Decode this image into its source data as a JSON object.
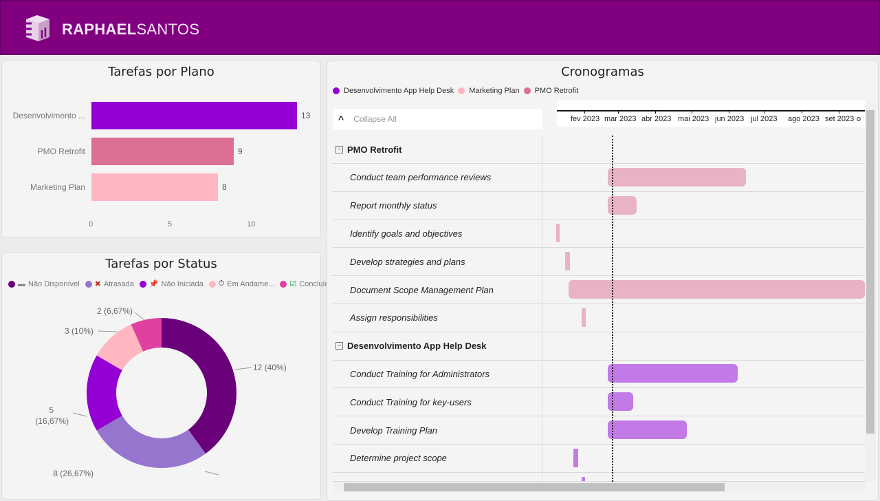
{
  "header": {
    "brand_bold": "RAPHAEL",
    "brand_light": "SANTOS",
    "brand_color": "#800080"
  },
  "plan_chart": {
    "title": "Tarefas por Plano",
    "chart_data": {
      "type": "bar",
      "orientation": "horizontal",
      "categories": [
        "Desenvolvimento ...",
        "PMO Retrofit",
        "Marketing Plan"
      ],
      "values": [
        13,
        9,
        8
      ],
      "colors": [
        "#9400d3",
        "#db7093",
        "#ffb6c1"
      ],
      "xticks": [
        "0",
        "5",
        "10"
      ],
      "xlim": [
        0,
        14
      ]
    }
  },
  "status_chart": {
    "title": "Tarefas por Status",
    "legend": [
      {
        "label": "Não Disponível",
        "color": "#6a007a",
        "icon": "dash-icon"
      },
      {
        "label": "Atrasada",
        "color": "#9575cd",
        "icon": "x-icon"
      },
      {
        "label": "Não Iniciada",
        "color": "#9400d3",
        "icon": "pin-icon"
      },
      {
        "label": "Em Andame...",
        "color": "#ffb6c1",
        "icon": "stopwatch-icon"
      },
      {
        "label": "Concluída",
        "color": "#e040a0",
        "icon": "check-icon"
      }
    ],
    "chart_data": {
      "type": "pie",
      "donut": true,
      "slices": [
        {
          "status": "Não Disponível",
          "value": 12,
          "label": "12 (40%)",
          "color": "#6a007a"
        },
        {
          "status": "Atrasada",
          "value": 8,
          "label": "8 (26,67%)",
          "color": "#9575cd"
        },
        {
          "status": "Não Iniciada",
          "value": 5,
          "label": "5 (16,67%)",
          "color": "#9400d3"
        },
        {
          "status": "Em Andamento",
          "value": 3,
          "label": "3 (10%)",
          "color": "#ffb6c1"
        },
        {
          "status": "Concluída",
          "value": 2,
          "label": "2 (6,67%)",
          "color": "#e040a0"
        }
      ]
    },
    "label_5a": "5",
    "label_5b": "(16,67%)"
  },
  "gantt": {
    "title": "Cronogramas",
    "legend": [
      {
        "label": "Desenvolvimento App Help Desk",
        "color": "#9400d3"
      },
      {
        "label": "Marketing Plan",
        "color": "#ffb6c1"
      },
      {
        "label": "PMO Retrofit",
        "color": "#db7093"
      }
    ],
    "collapse_label": "Collapse All",
    "months": [
      "fev 2023",
      "mar 2023",
      "abr 2023",
      "mai 2023",
      "jun 2023",
      "jul 2023",
      "ago 2023",
      "set 2023",
      "o"
    ],
    "today": "2023-02-24",
    "groups": [
      {
        "name": "PMO Retrofit",
        "toggle": "−",
        "color": "#e8b4c4",
        "tasks": [
          {
            "name": "Conduct team performance reviews",
            "start": "2023-02-20",
            "end": "2023-06-14"
          },
          {
            "name": "Report monthly status",
            "start": "2023-02-20",
            "end": "2023-03-16"
          },
          {
            "name": "Identify goals and objectives",
            "start": "2023-01-09",
            "end": "2023-01-12"
          },
          {
            "name": "Develop strategies and plans",
            "start": "2023-01-16",
            "end": "2023-01-20"
          },
          {
            "name": "Document Scope Management Plan",
            "start": "2023-01-19",
            "end": "2023-12-31"
          },
          {
            "name": "Assign responsibilities",
            "start": "2023-01-30",
            "end": "2023-02-02"
          }
        ]
      },
      {
        "name": "Desenvolvimento App Help Desk",
        "toggle": "−",
        "color": "#c27ae6",
        "tasks": [
          {
            "name": "Conduct Training for Administrators",
            "start": "2023-02-20",
            "end": "2023-06-07"
          },
          {
            "name": "Conduct Training for key-users",
            "start": "2023-02-20",
            "end": "2023-03-13"
          },
          {
            "name": "Develop Training Plan",
            "start": "2023-02-20",
            "end": "2023-04-26"
          },
          {
            "name": "Determine project scope",
            "start": "2023-01-23",
            "end": "2023-01-27"
          },
          {
            "name": "",
            "start": "2023-01-30",
            "end": "2023-02-01"
          }
        ]
      }
    ]
  }
}
